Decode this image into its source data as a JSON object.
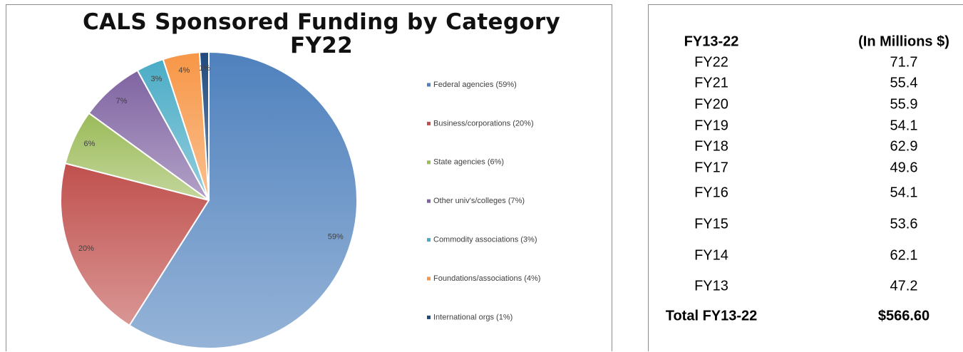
{
  "chart_data": {
    "type": "pie",
    "title": "CALS Sponsored Funding by Category FY22",
    "categories": [
      "Federal agencies (59%)",
      "Business/corporations (20%)",
      "State agencies (6%)",
      "Other univ's/colleges (7%)",
      "Commodity associations (3%)",
      "Foundations/associations (4%)",
      "International orgs (1%)"
    ],
    "values": [
      59,
      20,
      6,
      7,
      3,
      4,
      1
    ],
    "value_labels": [
      "59%",
      "20%",
      "6%",
      "7%",
      "3%",
      "4%",
      "1%"
    ],
    "colors": [
      "#4f81bd",
      "#c0504d",
      "#9bbb59",
      "#8064a2",
      "#4bacc6",
      "#f79646",
      "#1f497d"
    ],
    "legend": "right"
  },
  "table": {
    "header": [
      "FY13-22",
      "(In Millions $)"
    ],
    "rows": [
      [
        "FY22",
        71.7
      ],
      [
        "FY21",
        55.4
      ],
      [
        "FY20",
        55.9
      ],
      [
        "FY19",
        54.1
      ],
      [
        "FY18",
        62.9
      ],
      [
        "FY17",
        49.6
      ],
      [
        "FY16",
        54.1
      ],
      [
        "FY15",
        53.6
      ],
      [
        "FY14",
        62.1
      ],
      [
        "FY13",
        47.2
      ]
    ],
    "total": [
      "Total FY13-22",
      "$566.60"
    ]
  }
}
